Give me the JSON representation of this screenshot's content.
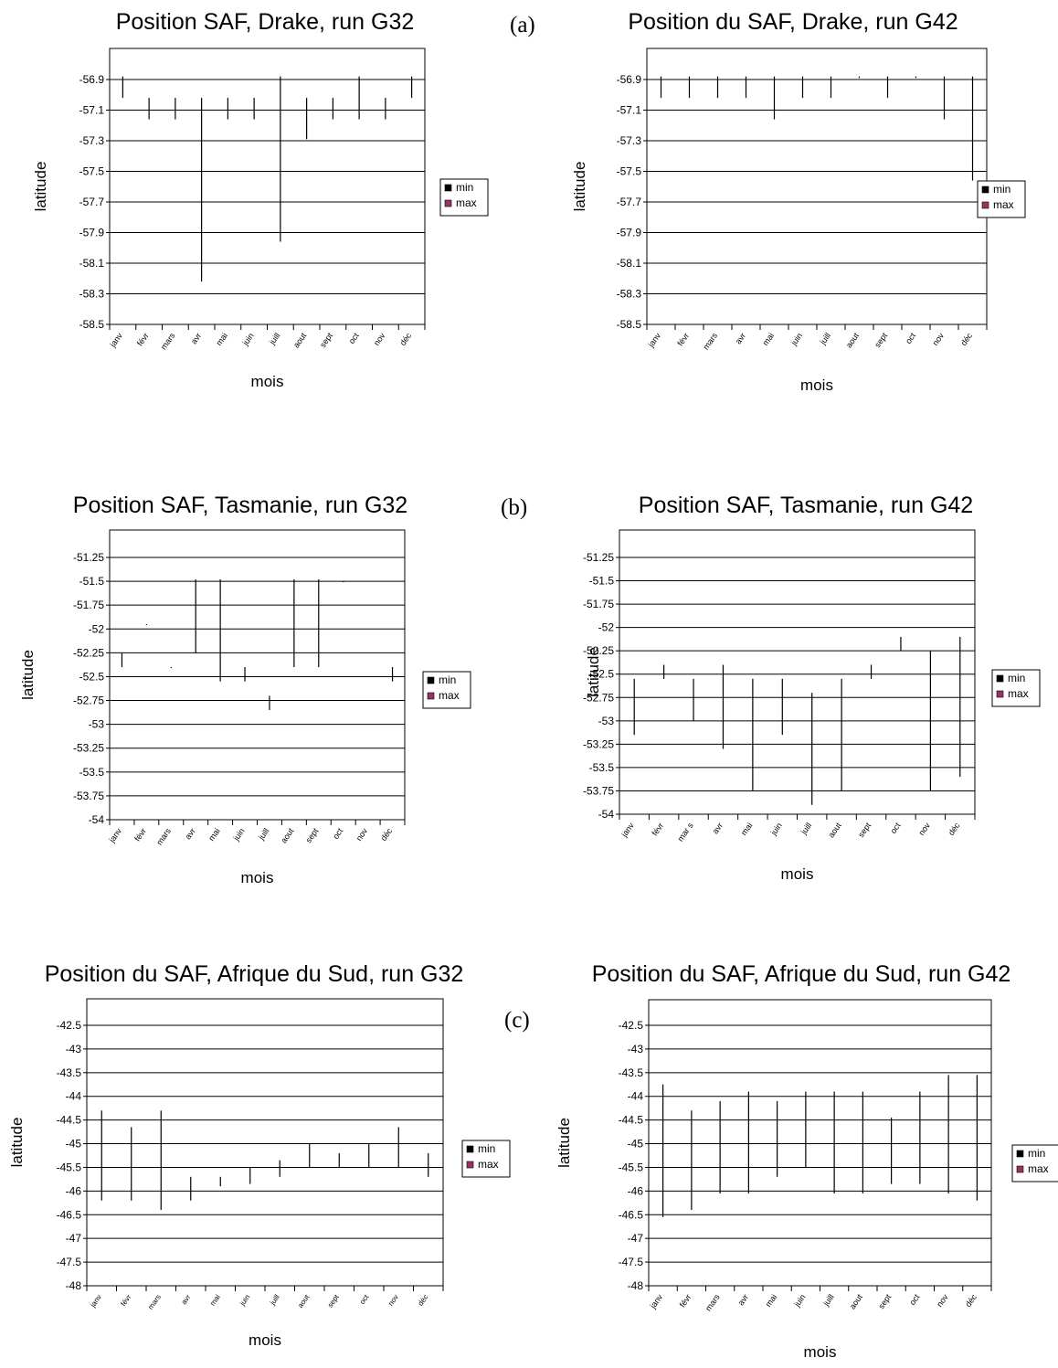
{
  "figure": {
    "panel_labels": [
      "(a)",
      "(b)",
      "(c)"
    ]
  },
  "chart_data": [
    {
      "type": "bar",
      "title": "Position SAF, Drake, run G32",
      "xlabel": "mois",
      "ylabel": "latitude",
      "categories": [
        "janv",
        "févr",
        "mars",
        "avr",
        "mai",
        "juin",
        "juill",
        "aout",
        "sept",
        "oct",
        "nov",
        "déc"
      ],
      "yticks": [
        "-56.9",
        "-57.1",
        "-57.3",
        "-57.5",
        "-57.7",
        "-57.9",
        "-58.1",
        "-58.3",
        "-58.5"
      ],
      "ylim": [
        -58.5,
        -56.75
      ],
      "grid": true,
      "legend": {
        "position": "right",
        "entries": [
          "min",
          "max"
        ],
        "colors": [
          "#000000",
          "#993366"
        ]
      },
      "series": [
        {
          "name": "min",
          "values": [
            -57.02,
            -57.16,
            -57.16,
            -58.22,
            -57.16,
            -57.16,
            -57.96,
            -57.29,
            -57.16,
            -57.16,
            -57.16,
            -57.02
          ]
        },
        {
          "name": "max",
          "values": [
            -56.88,
            -57.02,
            -57.02,
            -57.02,
            -57.02,
            -57.02,
            -56.88,
            -57.02,
            -57.02,
            -56.88,
            -57.02,
            -56.88
          ]
        }
      ]
    },
    {
      "type": "bar",
      "title": "Position du SAF, Drake, run G42",
      "xlabel": "mois",
      "ylabel": "latitude",
      "categories": [
        "janv",
        "févr",
        "mars",
        "avr",
        "mai",
        "juin",
        "juill",
        "aout",
        "sept",
        "oct",
        "nov",
        "déc"
      ],
      "yticks": [
        "-56.9",
        "-57.1",
        "-57.3",
        "-57.5",
        "-57.7",
        "-57.9",
        "-58.1",
        "-58.3",
        "-58.5"
      ],
      "ylim": [
        -58.5,
        -56.75
      ],
      "grid": true,
      "legend": {
        "position": "right",
        "entries": [
          "min",
          "max"
        ],
        "colors": [
          "#000000",
          "#993366"
        ]
      },
      "series": [
        {
          "name": "min",
          "values": [
            -57.02,
            -57.02,
            -57.02,
            -57.02,
            -57.16,
            -57.02,
            -57.02,
            -56.89,
            -57.02,
            -56.89,
            -57.16,
            -57.56
          ]
        },
        {
          "name": "max",
          "values": [
            -56.88,
            -56.88,
            -56.88,
            -56.88,
            -56.88,
            -56.88,
            -56.88,
            -56.88,
            -56.88,
            -56.88,
            -56.88,
            -56.88
          ]
        }
      ]
    },
    {
      "type": "bar",
      "title": "Position SAF, Tasmanie, run G32",
      "xlabel": "mois",
      "ylabel": "latitude",
      "categories": [
        "janv",
        "févr",
        "mars",
        "avr",
        "mai",
        "juin",
        "juill",
        "aout",
        "sept",
        "oct",
        "nov",
        "déc"
      ],
      "yticks": [
        "-51.25",
        "-51.5",
        "-51.75",
        "-52",
        "-52.25",
        "-52.5",
        "-52.75",
        "-53",
        "-53.25",
        "-53.5",
        "-53.75",
        "-54"
      ],
      "ylim": [
        -54,
        -51
      ],
      "grid": true,
      "legend": {
        "position": "right",
        "entries": [
          "min",
          "max"
        ],
        "colors": [
          "#000000",
          "#993366"
        ]
      },
      "series": [
        {
          "name": "min",
          "values": [
            -52.4,
            -51.95,
            -52.4,
            -52.25,
            -52.55,
            -52.55,
            -52.85,
            -52.4,
            -52.4,
            -51.5,
            null,
            -52.55
          ]
        },
        {
          "name": "max",
          "values": [
            -52.25,
            -51.95,
            -52.4,
            -51.48,
            -51.48,
            -52.4,
            -52.7,
            -51.48,
            -51.48,
            -51.5,
            null,
            -52.4
          ]
        }
      ]
    },
    {
      "type": "bar",
      "title": "Position SAF, Tasmanie, run G42",
      "xlabel": "mois",
      "ylabel": "latitude",
      "categories": [
        "janv",
        "févr",
        "mar s",
        "avr",
        "mai",
        "juin",
        "juill",
        "aout",
        "sept",
        "oct",
        "nov",
        "déc"
      ],
      "yticks": [
        "-51.25",
        "-51.5",
        "-51.75",
        "-52",
        "-52.25",
        "-52.5",
        "-52.75",
        "-53",
        "-53.25",
        "-53.5",
        "-53.75",
        "-54"
      ],
      "ylim": [
        -54,
        -51
      ],
      "grid": true,
      "legend": {
        "position": "right",
        "entries": [
          "min",
          "max"
        ],
        "colors": [
          "#000000",
          "#993366"
        ]
      },
      "series": [
        {
          "name": "min",
          "values": [
            -53.15,
            -52.55,
            -53.0,
            -53.3,
            -53.75,
            -53.15,
            -53.9,
            -53.75,
            -52.55,
            -52.25,
            -53.75,
            -53.6
          ]
        },
        {
          "name": "max",
          "values": [
            -52.55,
            -52.4,
            -52.55,
            -52.4,
            -52.55,
            -52.55,
            -52.7,
            -52.55,
            -52.4,
            -52.1,
            -52.25,
            -52.1
          ]
        }
      ]
    },
    {
      "type": "bar",
      "title": "Position du SAF, Afrique du Sud, run G32",
      "xlabel": "mois",
      "ylabel": "latitude",
      "categories": [
        "janv",
        "févr",
        "mars",
        "avr",
        "mai",
        "juin",
        "juill",
        "aout",
        "sept",
        "oct",
        "nov",
        "déc"
      ],
      "yticks": [
        "-42.5",
        "-43",
        "-43.5",
        "-44",
        "-44.5",
        "-45",
        "-45.5",
        "-46",
        "-46.5",
        "-47",
        "-47.5",
        "-48"
      ],
      "ylim": [
        -48,
        -42
      ],
      "grid": true,
      "legend": {
        "position": "right",
        "entries": [
          "min",
          "max"
        ],
        "colors": [
          "#000000",
          "#993366"
        ]
      },
      "series": [
        {
          "name": "min",
          "values": [
            -46.2,
            -46.2,
            -46.4,
            -46.2,
            -45.9,
            -45.85,
            -45.7,
            -45.5,
            -45.5,
            -45.5,
            -45.5,
            -45.7
          ]
        },
        {
          "name": "max",
          "values": [
            -44.3,
            -44.65,
            -44.3,
            -45.7,
            -45.7,
            -45.5,
            -45.35,
            -45.0,
            -45.2,
            -45.0,
            -44.65,
            -45.2
          ]
        }
      ]
    },
    {
      "type": "bar",
      "title": "Position du SAF, Afrique du Sud, run G42",
      "xlabel": "mois",
      "ylabel": "latitude",
      "categories": [
        "janv",
        "févr",
        "mars",
        "avr",
        "mai",
        "juin",
        "juill",
        "aout",
        "sept",
        "oct",
        "nov",
        "déc"
      ],
      "yticks": [
        "-42.5",
        "-43",
        "-43.5",
        "-44",
        "-44.5",
        "-45",
        "-45.5",
        "-46",
        "-46.5",
        "-47",
        "-47.5",
        "-48"
      ],
      "ylim": [
        -48,
        -42
      ],
      "grid": true,
      "legend": {
        "position": "right",
        "entries": [
          "min",
          "max"
        ],
        "colors": [
          "#000000",
          "#993366"
        ]
      },
      "series": [
        {
          "name": "min",
          "values": [
            -46.55,
            -46.4,
            -46.05,
            -46.05,
            -45.7,
            -45.5,
            -46.05,
            -46.05,
            -45.85,
            -45.85,
            -46.05,
            -46.2
          ]
        },
        {
          "name": "max",
          "values": [
            -43.75,
            -44.3,
            -44.1,
            -43.9,
            -44.1,
            -43.9,
            -43.9,
            -43.9,
            -44.45,
            -43.9,
            -43.55,
            -43.55
          ]
        }
      ]
    }
  ]
}
